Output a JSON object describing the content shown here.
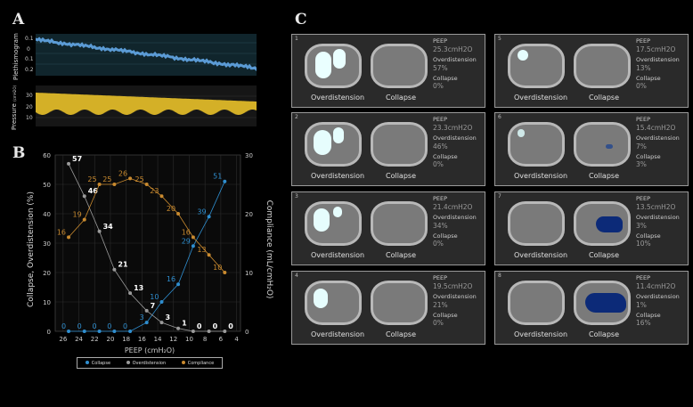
{
  "panels": {
    "a": "A",
    "b": "B",
    "c": "C"
  },
  "panel_a": {
    "pleth_label": "Plethismogram",
    "pressure_label": "Pressure",
    "pressure_unit": "(cmH2O)",
    "pleth_ticks": [
      "0.1",
      "0",
      "0.1",
      "0.2"
    ],
    "pressure_ticks": [
      "30",
      "20",
      "10"
    ],
    "pleth_color": "#5b9bd5",
    "pressure_color": "#d4b027"
  },
  "chart_data": {
    "type": "line",
    "xlabel": "PEEP (cmH₂O)",
    "ylabel": "Collapse, Overdistension (%)",
    "y2label": "Compliance (mL/cmH₂O)",
    "x_ticks": [
      "26",
      "24",
      "22",
      "20",
      "18",
      "16",
      "14",
      "12",
      "10",
      "8",
      "6",
      "4"
    ],
    "y_ticks": [
      "0",
      "10",
      "20",
      "30",
      "40",
      "50",
      "60"
    ],
    "y2_ticks": [
      "0",
      "10",
      "20",
      "30"
    ],
    "ylim": [
      0,
      60
    ],
    "y2lim": [
      0,
      30
    ],
    "xlim": [
      27,
      3.5
    ],
    "series": [
      {
        "name": "Collapse",
        "color": "#2f8ecf",
        "axis": "left",
        "x": [
          25.3,
          23.3,
          21.4,
          19.5,
          17.5,
          15.4,
          13.5,
          11.4,
          9.5,
          7.5,
          5.5
        ],
        "values": [
          0,
          0,
          0,
          0,
          0,
          3,
          10,
          16,
          29,
          39,
          51
        ],
        "labels": [
          "0",
          "0",
          "0",
          "0",
          "0",
          "3",
          "10",
          "16",
          "29",
          "39",
          "51"
        ]
      },
      {
        "name": "Overdistension",
        "color": "#9a9a9a",
        "axis": "left",
        "x": [
          25.3,
          23.3,
          21.4,
          19.5,
          17.5,
          15.4,
          13.5,
          11.4,
          9.5,
          7.5,
          5.5
        ],
        "values": [
          57,
          46,
          34,
          21,
          13,
          7,
          3,
          1,
          0,
          0,
          0
        ],
        "labels": [
          "57",
          "46",
          "34",
          "21",
          "13",
          "7",
          "3",
          "1",
          "0",
          "0",
          "0"
        ]
      },
      {
        "name": "Compliance",
        "color": "#c98a2f",
        "axis": "right",
        "x": [
          25.3,
          23.3,
          21.4,
          19.5,
          17.5,
          15.4,
          13.5,
          11.4,
          9.5,
          7.5,
          5.5
        ],
        "values": [
          16,
          19,
          25,
          25,
          26,
          25,
          23,
          20,
          16,
          13,
          10
        ],
        "labels": [
          "16",
          "19",
          "25",
          "25",
          "26",
          "25",
          "23",
          "20",
          "16",
          "13",
          "10"
        ]
      }
    ],
    "legend": [
      "Collapse",
      "Overdistension",
      "Compliance"
    ],
    "grid": true
  },
  "cells": [
    {
      "num": "1",
      "peep": "25.3cmH2O",
      "over": "57%",
      "coll": "0%"
    },
    {
      "num": "2",
      "peep": "23.3cmH2O",
      "over": "46%",
      "coll": "0%"
    },
    {
      "num": "3",
      "peep": "21.4cmH2O",
      "over": "34%",
      "coll": "0%"
    },
    {
      "num": "4",
      "peep": "19.5cmH2O",
      "over": "21%",
      "coll": "0%"
    },
    {
      "num": "5",
      "peep": "17.5cmH2O",
      "over": "13%",
      "coll": "0%"
    },
    {
      "num": "6",
      "peep": "15.4cmH2O",
      "over": "7%",
      "coll": "3%"
    },
    {
      "num": "7",
      "peep": "13.5cmH2O",
      "over": "3%",
      "coll": "10%"
    },
    {
      "num": "8",
      "peep": "11.4cmH2O",
      "over": "1%",
      "coll": "16%"
    }
  ],
  "cell_labels": {
    "peep": "PEEP",
    "over": "Overdistension",
    "coll": "Collapse",
    "cap_over": "Overdistension",
    "cap_coll": "Collapse"
  }
}
